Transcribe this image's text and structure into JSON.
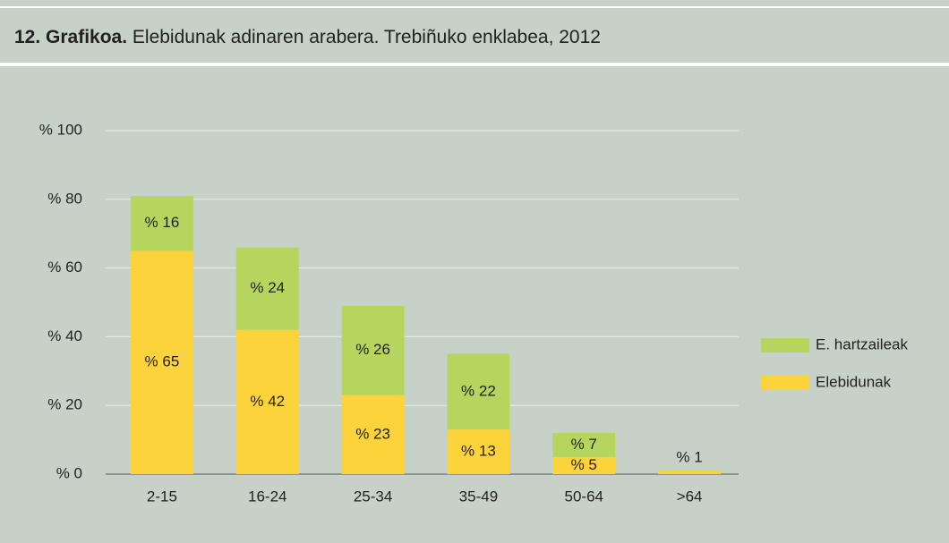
{
  "chart_data": {
    "type": "stacked_bar",
    "title_number": "12. Grafikoa.",
    "title": "Elebidunak adinaren arabera. Trebiñuko enklabea, 2012",
    "categories": [
      "2-15",
      "16-24",
      "25-34",
      "35-49",
      "50-64",
      ">64"
    ],
    "series": [
      {
        "name": "Elebidunak",
        "color": "#fdd33b",
        "values": [
          65,
          42,
          23,
          13,
          5,
          1
        ],
        "value_labels": [
          "% 65",
          "% 42",
          "% 23",
          "% 13",
          "% 5",
          "% 1"
        ]
      },
      {
        "name": "E. hartzaileak",
        "color": "#b6d55e",
        "values": [
          16,
          24,
          26,
          22,
          7,
          null
        ],
        "value_labels": [
          "% 16",
          "% 24",
          "% 26",
          "% 22",
          "% 7",
          null
        ]
      }
    ],
    "ylim": [
      0,
      100
    ],
    "yticks": [
      {
        "value": 0,
        "label": "% 0"
      },
      {
        "value": 20,
        "label": "% 20"
      },
      {
        "value": 40,
        "label": "% 40"
      },
      {
        "value": 60,
        "label": "% 60"
      },
      {
        "value": 80,
        "label": "% 80"
      },
      {
        "value": 100,
        "label": "% 100"
      }
    ],
    "grid": true,
    "legend": "right"
  }
}
